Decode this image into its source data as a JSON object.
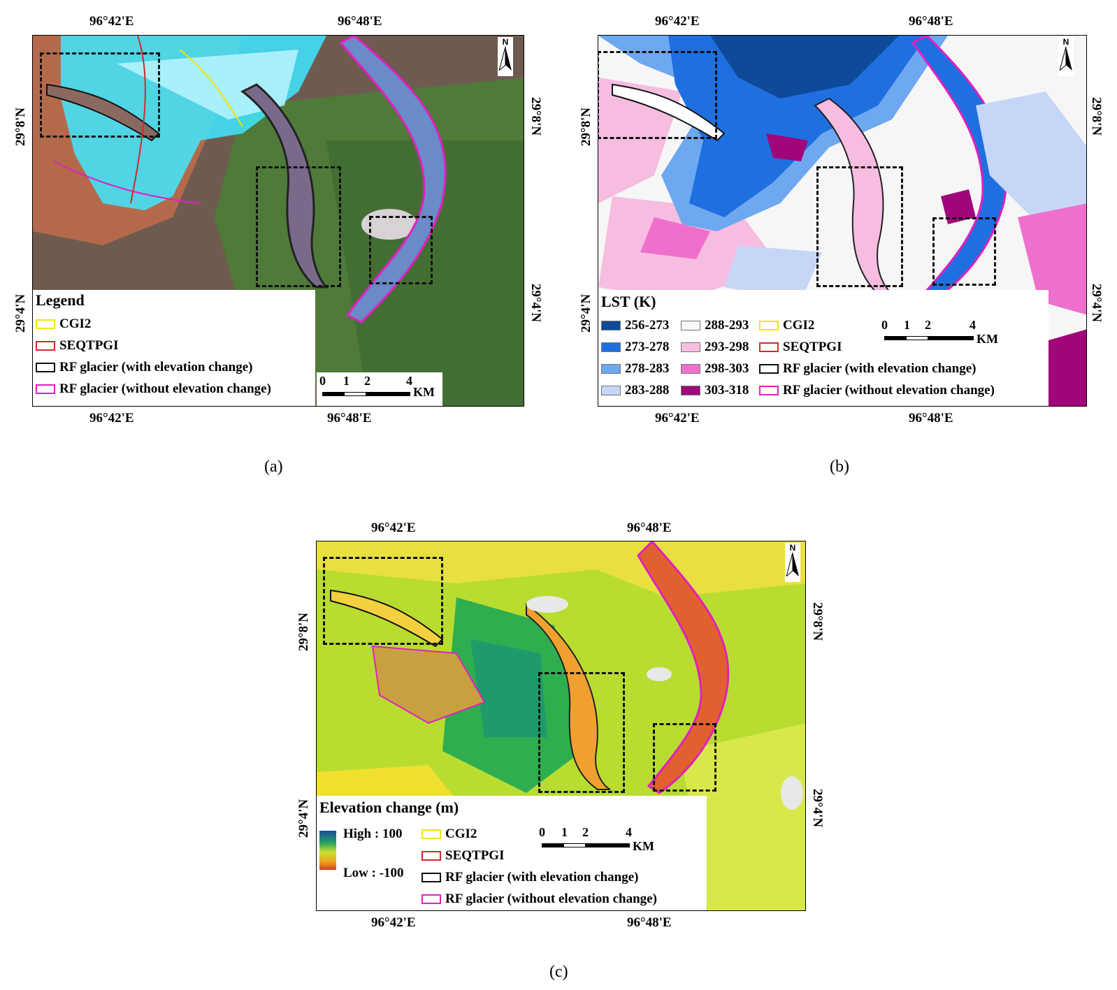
{
  "coords": {
    "lon1": "96°42'E",
    "lon2": "96°48'E",
    "lat1": "29°8'N",
    "lat2": "29°4'N"
  },
  "north": "N",
  "panels": {
    "a": {
      "caption_letter": "a",
      "legend_title": "Legend",
      "legend_items": [
        "CGI2",
        "SEQTPGI",
        "RF glacier (with elevation change)",
        "RF glacier (without elevation change)"
      ]
    },
    "b": {
      "caption_letter": "b",
      "legend_title": "LST (K)",
      "lst_classes": [
        "256-273",
        "273-278",
        "278-283",
        "283-288",
        "288-293",
        "293-298",
        "298-303",
        "303-318"
      ],
      "legend_items": [
        "CGI2",
        "SEQTPGI",
        "RF glacier (with elevation change)",
        "RF glacier (without elevation change)"
      ]
    },
    "c": {
      "caption_letter": "c",
      "legend_title": "Elevation change (m)",
      "high_label": "High : 100",
      "low_label": "Low : -100",
      "legend_items": [
        "CGI2",
        "SEQTPGI",
        "RF glacier (with elevation change)",
        "RF glacier (without elevation change)"
      ]
    }
  },
  "scale": {
    "ticks": [
      "0",
      "1",
      "2",
      "4"
    ],
    "unit": "KM"
  },
  "colors": {
    "cgi2": "#f2e600",
    "seqtpgi": "#d22a2a",
    "rf_with": "#111111",
    "rf_without": "#e020c0",
    "lst": [
      "#0f4a9a",
      "#1f6fe0",
      "#6ea8f0",
      "#c6d6f6",
      "#f8f8f8",
      "#f6bde0",
      "#ee70cc",
      "#a0067a"
    ]
  }
}
